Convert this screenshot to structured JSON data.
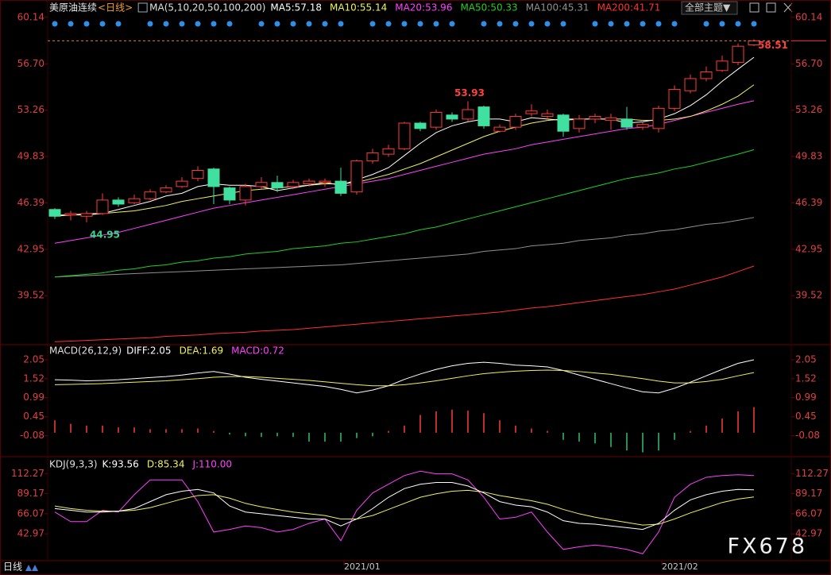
{
  "header": {
    "symbol": "美原油连续",
    "period": "<日线>",
    "theme": "全部主题▼",
    "footer_period": "日线",
    "watermark": "FX678"
  },
  "chart_data": [
    {
      "type": "candlestick",
      "title": "MA(5,10,20,50,100,200)",
      "categories": [
        null,
        null,
        null,
        null,
        null,
        null,
        null,
        null,
        null,
        null,
        null,
        null,
        null,
        null,
        null,
        null,
        null,
        null,
        null,
        "2021/01",
        null,
        null,
        null,
        null,
        null,
        null,
        null,
        null,
        null,
        null,
        null,
        null,
        null,
        null,
        null,
        null,
        null,
        null,
        null,
        "2021/02",
        null,
        null,
        null,
        null,
        null
      ],
      "open": [
        45.9,
        45.5,
        45.4,
        45.6,
        46.6,
        46.4,
        46.7,
        47.2,
        47.6,
        48.2,
        48.9,
        47.5,
        46.6,
        47.6,
        47.9,
        47.6,
        47.8,
        47.9,
        48.0,
        47.2,
        49.5,
        50.0,
        50.4,
        52.3,
        52.0,
        52.9,
        52.6,
        53.5,
        51.7,
        52.0,
        53.0,
        52.8,
        52.9,
        51.9,
        52.6,
        52.5,
        52.6,
        52.0,
        51.9,
        53.4,
        54.7,
        55.6,
        56.2,
        56.8,
        58.1
      ],
      "high": [
        46.0,
        45.8,
        45.8,
        47.1,
        46.8,
        47.0,
        47.4,
        47.7,
        48.3,
        49.1,
        49.0,
        47.6,
        47.8,
        48.3,
        48.4,
        48.1,
        48.2,
        48.2,
        49.0,
        49.6,
        50.4,
        50.7,
        52.4,
        52.4,
        53.3,
        53.1,
        53.93,
        53.6,
        52.2,
        53.0,
        53.7,
        53.3,
        53.0,
        52.9,
        53.0,
        53.0,
        53.5,
        52.4,
        53.6,
        55.1,
        55.9,
        56.5,
        57.3,
        58.2,
        58.51
      ],
      "low": [
        45.2,
        45.1,
        44.95,
        45.5,
        46.1,
        46.3,
        46.6,
        47.1,
        47.5,
        48.0,
        46.3,
        46.3,
        46.2,
        47.4,
        47.2,
        47.4,
        47.6,
        47.6,
        46.9,
        47.0,
        49.3,
        49.8,
        50.3,
        51.7,
        51.8,
        52.4,
        52.4,
        51.9,
        51.6,
        51.8,
        52.8,
        52.6,
        51.3,
        51.6,
        52.3,
        51.8,
        51.8,
        51.8,
        51.6,
        53.2,
        54.5,
        55.4,
        56.1,
        56.6,
        58.0
      ],
      "close": [
        45.4,
        45.6,
        45.6,
        46.6,
        46.3,
        46.7,
        47.2,
        47.5,
        48.0,
        48.8,
        47.6,
        46.6,
        47.6,
        47.9,
        47.5,
        47.9,
        48.0,
        48.0,
        47.1,
        49.5,
        50.1,
        50.4,
        52.3,
        51.9,
        53.1,
        52.6,
        53.3,
        52.1,
        52.0,
        52.8,
        53.2,
        53.0,
        51.7,
        52.6,
        52.8,
        52.7,
        52.0,
        52.2,
        53.4,
        54.8,
        55.6,
        56.1,
        56.9,
        58.0,
        58.4
      ],
      "up_color": "#ff3b3b",
      "down_color": "#3fe0a0",
      "peak_labels": [
        53.93,
        58.51
      ],
      "trough_labels": [
        44.95
      ],
      "series": [
        {
          "name": "MA5:57.18",
          "color": "#ffffff",
          "values": [
            45.4,
            45.5,
            45.5,
            45.6,
            45.9,
            46.2,
            46.5,
            46.9,
            47.1,
            47.6,
            47.8,
            47.7,
            47.7,
            47.6,
            47.3,
            47.5,
            47.7,
            47.9,
            47.7,
            48.1,
            48.5,
            49.0,
            49.9,
            50.8,
            51.6,
            52.1,
            52.4,
            52.6,
            52.6,
            52.4,
            52.7,
            52.6,
            52.5,
            52.6,
            52.6,
            52.6,
            52.3,
            52.4,
            52.6,
            53.0,
            53.6,
            54.4,
            55.4,
            56.3,
            57.18
          ]
        },
        {
          "name": "MA10:55.14",
          "color": "#f0f060",
          "values": [
            45.5,
            45.5,
            45.6,
            45.6,
            45.7,
            45.8,
            46.0,
            46.2,
            46.5,
            46.7,
            46.9,
            47.1,
            47.3,
            47.4,
            47.5,
            47.6,
            47.7,
            47.8,
            47.8,
            47.9,
            48.2,
            48.5,
            48.9,
            49.3,
            49.8,
            50.3,
            50.8,
            51.3,
            51.7,
            52.0,
            52.3,
            52.5,
            52.6,
            52.6,
            52.6,
            52.6,
            52.6,
            52.5,
            52.5,
            52.6,
            52.8,
            53.2,
            53.7,
            54.3,
            55.14
          ]
        },
        {
          "name": "MA20:53.96",
          "color": "#ff40ff",
          "values": [
            43.4,
            43.6,
            43.8,
            44.0,
            44.2,
            44.5,
            44.8,
            45.1,
            45.4,
            45.7,
            46.0,
            46.2,
            46.4,
            46.6,
            46.8,
            47.0,
            47.2,
            47.4,
            47.6,
            47.8,
            48.0,
            48.2,
            48.5,
            48.8,
            49.1,
            49.4,
            49.7,
            50.0,
            50.2,
            50.4,
            50.7,
            50.9,
            51.1,
            51.3,
            51.5,
            51.7,
            51.9,
            52.0,
            52.2,
            52.5,
            52.8,
            53.1,
            53.4,
            53.7,
            53.96
          ]
        },
        {
          "name": "MA50:50.33",
          "color": "#20d020",
          "values": [
            40.9,
            41.0,
            41.1,
            41.2,
            41.4,
            41.5,
            41.7,
            41.8,
            42.0,
            42.1,
            42.3,
            42.4,
            42.6,
            42.7,
            42.8,
            43.0,
            43.1,
            43.2,
            43.4,
            43.5,
            43.7,
            43.9,
            44.1,
            44.4,
            44.6,
            44.9,
            45.2,
            45.5,
            45.8,
            46.1,
            46.4,
            46.7,
            47.0,
            47.3,
            47.6,
            47.9,
            48.2,
            48.4,
            48.6,
            48.9,
            49.1,
            49.4,
            49.7,
            50.0,
            50.33
          ]
        },
        {
          "name": "MA100:45.31",
          "color": "#909090",
          "values": [
            40.9,
            40.95,
            41.0,
            41.05,
            41.1,
            41.15,
            41.2,
            41.25,
            41.3,
            41.35,
            41.4,
            41.45,
            41.5,
            41.55,
            41.6,
            41.65,
            41.7,
            41.75,
            41.8,
            41.9,
            42.0,
            42.1,
            42.2,
            42.3,
            42.4,
            42.5,
            42.6,
            42.8,
            42.9,
            43.0,
            43.2,
            43.3,
            43.4,
            43.6,
            43.7,
            43.8,
            44.0,
            44.1,
            44.3,
            44.4,
            44.6,
            44.8,
            44.9,
            45.1,
            45.31
          ]
        },
        {
          "name": "MA200:41.71",
          "color": "#ff3030",
          "values": [
            36.1,
            36.15,
            36.2,
            36.25,
            36.3,
            36.35,
            36.4,
            36.5,
            36.55,
            36.6,
            36.7,
            36.75,
            36.8,
            36.9,
            36.95,
            37.0,
            37.1,
            37.2,
            37.3,
            37.4,
            37.5,
            37.6,
            37.7,
            37.8,
            37.9,
            38.0,
            38.1,
            38.2,
            38.3,
            38.45,
            38.6,
            38.7,
            38.85,
            39.0,
            39.15,
            39.3,
            39.45,
            39.6,
            39.8,
            40.0,
            40.3,
            40.6,
            40.9,
            41.3,
            41.71
          ]
        }
      ],
      "ylim": [
        36.0,
        60.6
      ],
      "yticks": [
        60.14,
        {
          "value": 56.7,
          "label": "56.70"
        },
        53.26,
        49.83,
        46.39,
        42.95,
        39.52
      ]
    },
    {
      "type": "macd",
      "title": "MACD(26,12,9)",
      "positive_color": "#ff3b3b",
      "negative_color": "#30c070",
      "series": [
        {
          "name": "DIFF:2.05",
          "color": "#ffffff",
          "values": [
            1.49,
            1.48,
            1.46,
            1.47,
            1.49,
            1.52,
            1.55,
            1.58,
            1.62,
            1.68,
            1.72,
            1.65,
            1.56,
            1.5,
            1.45,
            1.4,
            1.35,
            1.3,
            1.22,
            1.12,
            1.2,
            1.32,
            1.5,
            1.65,
            1.78,
            1.88,
            1.95,
            1.98,
            1.95,
            1.9,
            1.88,
            1.85,
            1.75,
            1.62,
            1.5,
            1.38,
            1.26,
            1.15,
            1.12,
            1.25,
            1.42,
            1.6,
            1.78,
            1.95,
            2.05
          ]
        },
        {
          "name": "DEA:1.69",
          "color": "#f0f060",
          "values": [
            1.35,
            1.36,
            1.37,
            1.38,
            1.4,
            1.42,
            1.44,
            1.46,
            1.49,
            1.52,
            1.56,
            1.58,
            1.58,
            1.56,
            1.53,
            1.5,
            1.47,
            1.43,
            1.39,
            1.35,
            1.32,
            1.32,
            1.35,
            1.4,
            1.46,
            1.53,
            1.6,
            1.66,
            1.7,
            1.73,
            1.75,
            1.76,
            1.75,
            1.72,
            1.68,
            1.64,
            1.58,
            1.52,
            1.45,
            1.4,
            1.4,
            1.44,
            1.5,
            1.6,
            1.69
          ]
        },
        {
          "name": "MACD:0.72",
          "color": "#ff40ff",
          "style": "bar",
          "values": [
            0.35,
            0.25,
            0.2,
            0.2,
            0.15,
            0.15,
            0.1,
            0.1,
            0.1,
            0.12,
            0.05,
            -0.05,
            -0.1,
            -0.12,
            -0.1,
            -0.12,
            -0.25,
            -0.25,
            -0.25,
            -0.15,
            -0.1,
            0.05,
            0.2,
            0.5,
            0.6,
            0.65,
            0.62,
            0.55,
            0.35,
            0.2,
            0.12,
            0.05,
            -0.2,
            -0.25,
            -0.3,
            -0.4,
            -0.5,
            -0.55,
            -0.5,
            -0.2,
            0.05,
            0.2,
            0.4,
            0.6,
            0.72
          ]
        }
      ],
      "ylim": [
        -0.65,
        2.43
      ],
      "yticks": [
        2.05,
        1.52,
        0.99,
        0.45,
        -0.08
      ]
    },
    {
      "type": "line",
      "title": "KDJ(9,3,3)",
      "series": [
        {
          "name": "K:93.56",
          "color": "#ffffff",
          "values": [
            72,
            70,
            68,
            68,
            69,
            72,
            80,
            88,
            92,
            94,
            90,
            75,
            68,
            66,
            64,
            62,
            60,
            60,
            52,
            60,
            72,
            85,
            95,
            100,
            102,
            102,
            98,
            90,
            80,
            76,
            74,
            68,
            58,
            55,
            54,
            52,
            50,
            48,
            55,
            70,
            82,
            88,
            92,
            94,
            93.56
          ]
        },
        {
          "name": "D:85.34",
          "color": "#f0f060",
          "values": [
            75,
            72,
            70,
            69,
            69,
            70,
            73,
            78,
            83,
            87,
            88,
            84,
            78,
            74,
            71,
            68,
            66,
            64,
            60,
            60,
            64,
            71,
            78,
            85,
            89,
            92,
            93,
            91,
            87,
            84,
            81,
            77,
            71,
            66,
            62,
            59,
            56,
            53,
            54,
            60,
            67,
            73,
            79,
            83,
            85.34
          ]
        },
        {
          "name": "J:110.00",
          "color": "#ff40ff",
          "values": [
            68,
            57,
            57,
            70,
            68,
            88,
            105,
            105,
            105,
            80,
            45,
            48,
            52,
            50,
            45,
            48,
            55,
            60,
            35,
            70,
            90,
            100,
            110,
            115,
            112,
            112,
            105,
            85,
            60,
            62,
            68,
            45,
            25,
            28,
            30,
            28,
            25,
            20,
            45,
            85,
            100,
            108,
            110,
            111,
            110
          ]
        }
      ],
      "ylim": [
        12,
        129
      ],
      "yticks": [
        112.27,
        89.17,
        66.07,
        42.97
      ]
    }
  ]
}
